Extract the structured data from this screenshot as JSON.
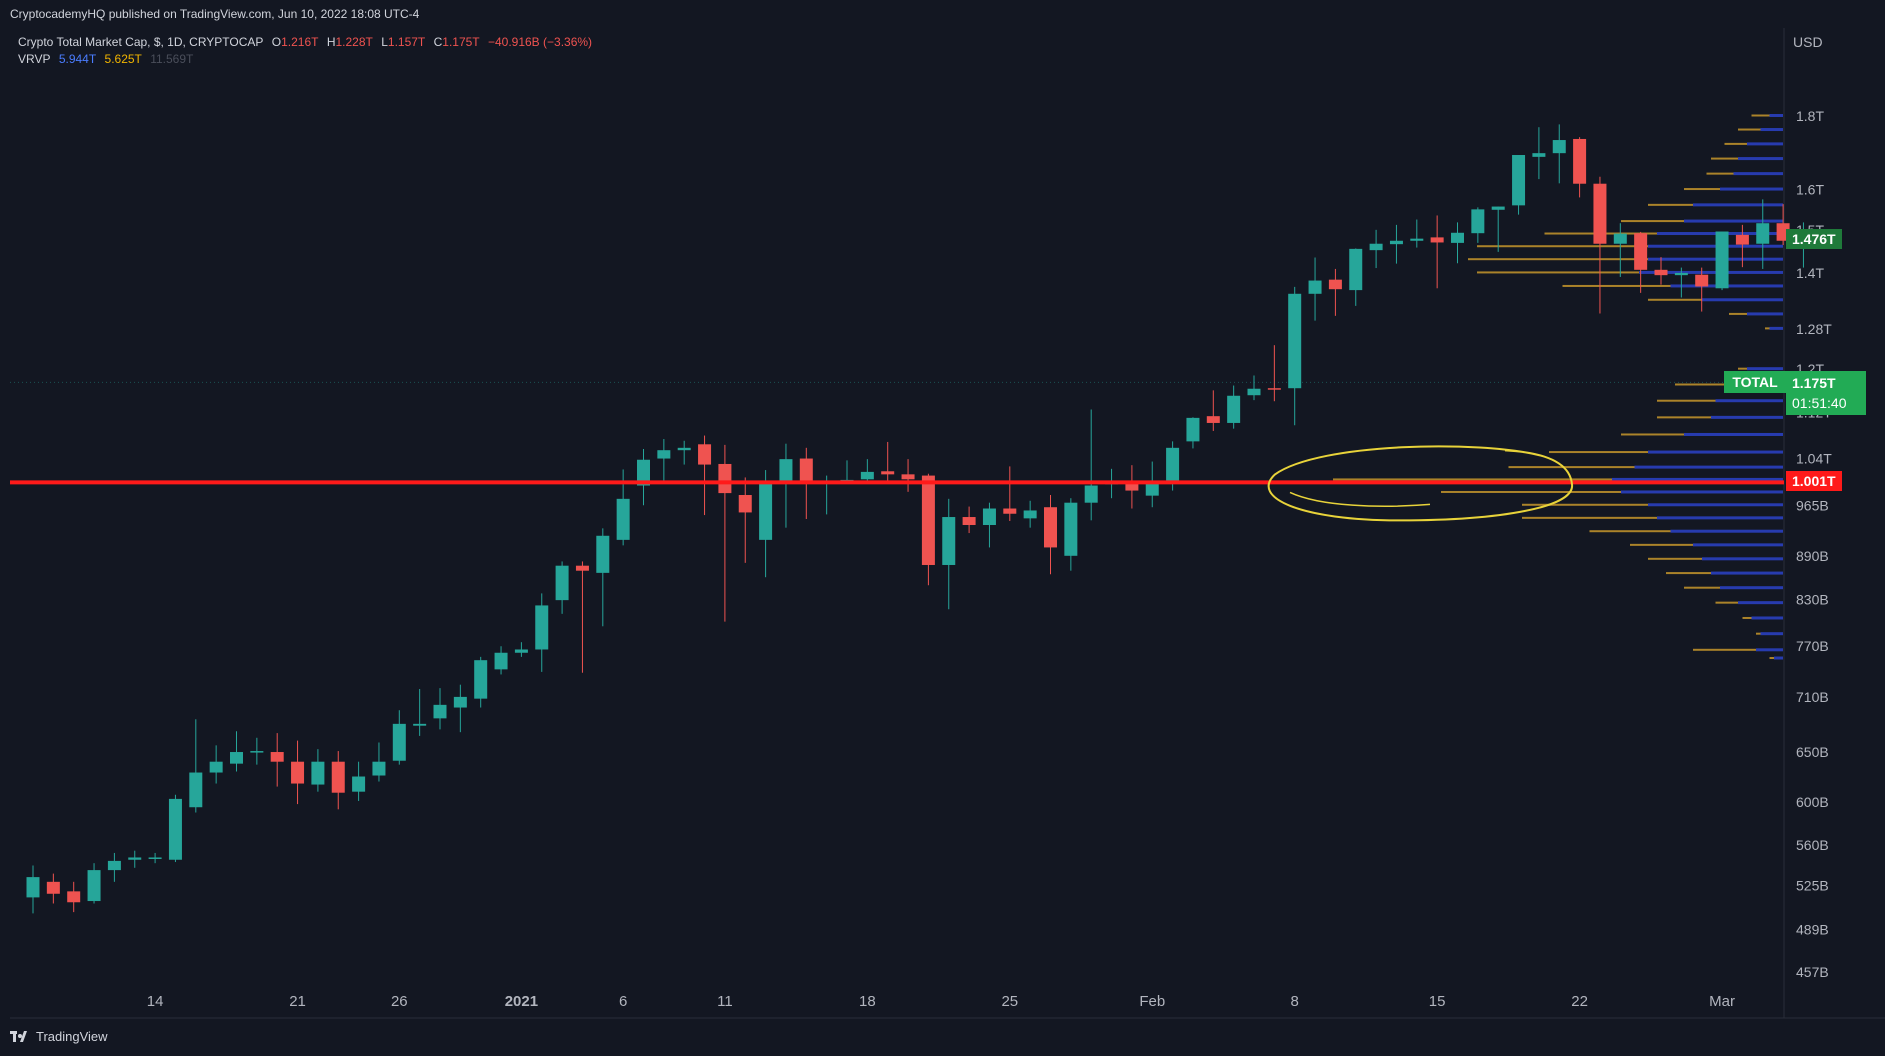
{
  "header": {
    "publisher": "CryptocademyHQ published on TradingView.com, Jun 10, 2022 18:08 UTC-4"
  },
  "legend": {
    "symbol": "Crypto Total Market Cap, $, 1D, CRYPTOCAP",
    "open_label": "O",
    "open": "1.216T",
    "high_label": "H",
    "high": "1.228T",
    "low_label": "L",
    "low": "1.157T",
    "close_label": "C",
    "close": "1.175T",
    "change": "−40.916B (−3.36%)",
    "indicator": "VRVP",
    "vrvp_up": "5.944T",
    "vrvp_down": "5.625T",
    "vrvp_total": "11.569T"
  },
  "price_tags": {
    "top": "1.476T",
    "symbol": "TOTAL",
    "last": "1.175T",
    "countdown": "01:51:40",
    "level": "1.001T"
  },
  "footer": {
    "brand": "TradingView"
  },
  "colors": {
    "background": "#131722",
    "up": "#26a69a",
    "down": "#ef5350",
    "vp_up": "#2a3fbf",
    "vp_down": "#c7962b",
    "level_line": "#ff1a1a",
    "annotation": "#e8d33a",
    "label_green": "#22ab55"
  },
  "chart_data": {
    "type": "candlestick",
    "currency": "USD",
    "y_scale": "log",
    "ylim": [
      435,
      2000
    ],
    "y_ticks": [
      {
        "value": 1800,
        "label": "1.8T"
      },
      {
        "value": 1600,
        "label": "1.6T"
      },
      {
        "value": 1500,
        "label": "1.5T"
      },
      {
        "value": 1400,
        "label": "1.4T"
      },
      {
        "value": 1280,
        "label": "1.28T"
      },
      {
        "value": 1200,
        "label": "1.2T"
      },
      {
        "value": 1120,
        "label": "1.12T"
      },
      {
        "value": 1040,
        "label": "1.04T"
      },
      {
        "value": 965,
        "label": "965B"
      },
      {
        "value": 890,
        "label": "890B"
      },
      {
        "value": 830,
        "label": "830B"
      },
      {
        "value": 770,
        "label": "770B"
      },
      {
        "value": 710,
        "label": "710B"
      },
      {
        "value": 650,
        "label": "650B"
      },
      {
        "value": 600,
        "label": "600B"
      },
      {
        "value": 560,
        "label": "560B"
      },
      {
        "value": 525,
        "label": "525B"
      },
      {
        "value": 489,
        "label": "489B"
      },
      {
        "value": 457,
        "label": "457B"
      }
    ],
    "x_ticks": [
      {
        "index": 6,
        "label": "14"
      },
      {
        "index": 13,
        "label": "21"
      },
      {
        "index": 18,
        "label": "26"
      },
      {
        "index": 24,
        "label": "2021",
        "bold": true
      },
      {
        "index": 29,
        "label": "6"
      },
      {
        "index": 34,
        "label": "11"
      },
      {
        "index": 41,
        "label": "18"
      },
      {
        "index": 48,
        "label": "25"
      },
      {
        "index": 55,
        "label": "Feb"
      },
      {
        "index": 62,
        "label": "8"
      },
      {
        "index": 69,
        "label": "15"
      },
      {
        "index": 76,
        "label": "22"
      },
      {
        "index": 83,
        "label": "Mar"
      }
    ],
    "levels": [
      {
        "value": 1001,
        "label": "1.001T"
      }
    ],
    "candles": [
      {
        "o": 515,
        "h": 542,
        "l": 502,
        "c": 532
      },
      {
        "o": 528,
        "h": 535,
        "l": 510,
        "c": 518
      },
      {
        "o": 520,
        "h": 528,
        "l": 503,
        "c": 511
      },
      {
        "o": 512,
        "h": 544,
        "l": 510,
        "c": 538
      },
      {
        "o": 538,
        "h": 553,
        "l": 528,
        "c": 546
      },
      {
        "o": 547,
        "h": 555,
        "l": 540,
        "c": 549
      },
      {
        "o": 549,
        "h": 553,
        "l": 544,
        "c": 549
      },
      {
        "o": 547,
        "h": 607,
        "l": 545,
        "c": 603
      },
      {
        "o": 595,
        "h": 685,
        "l": 590,
        "c": 629
      },
      {
        "o": 629,
        "h": 657,
        "l": 618,
        "c": 640
      },
      {
        "o": 638,
        "h": 672,
        "l": 630,
        "c": 650
      },
      {
        "o": 650,
        "h": 665,
        "l": 637,
        "c": 651
      },
      {
        "o": 650,
        "h": 670,
        "l": 615,
        "c": 640
      },
      {
        "o": 640,
        "h": 662,
        "l": 598,
        "c": 618
      },
      {
        "o": 617,
        "h": 653,
        "l": 610,
        "c": 640
      },
      {
        "o": 640,
        "h": 651,
        "l": 593,
        "c": 609
      },
      {
        "o": 610,
        "h": 640,
        "l": 601,
        "c": 625
      },
      {
        "o": 626,
        "h": 660,
        "l": 620,
        "c": 640
      },
      {
        "o": 641,
        "h": 695,
        "l": 637,
        "c": 680
      },
      {
        "o": 678,
        "h": 719,
        "l": 667,
        "c": 680
      },
      {
        "o": 686,
        "h": 720,
        "l": 674,
        "c": 701
      },
      {
        "o": 698,
        "h": 724,
        "l": 671,
        "c": 710
      },
      {
        "o": 708,
        "h": 757,
        "l": 698,
        "c": 753
      },
      {
        "o": 742,
        "h": 770,
        "l": 736,
        "c": 762
      },
      {
        "o": 762,
        "h": 775,
        "l": 757,
        "c": 766
      },
      {
        "o": 766,
        "h": 838,
        "l": 739,
        "c": 822
      },
      {
        "o": 829,
        "h": 882,
        "l": 811,
        "c": 876
      },
      {
        "o": 876,
        "h": 882,
        "l": 738,
        "c": 869
      },
      {
        "o": 866,
        "h": 930,
        "l": 795,
        "c": 919
      },
      {
        "o": 913,
        "h": 1022,
        "l": 905,
        "c": 975
      },
      {
        "o": 996,
        "h": 1056,
        "l": 965,
        "c": 1038
      },
      {
        "o": 1040,
        "h": 1073,
        "l": 1002,
        "c": 1054
      },
      {
        "o": 1054,
        "h": 1070,
        "l": 1030,
        "c": 1058
      },
      {
        "o": 1064,
        "h": 1079,
        "l": 950,
        "c": 1030
      },
      {
        "o": 1031,
        "h": 1063,
        "l": 801,
        "c": 984
      },
      {
        "o": 981,
        "h": 1009,
        "l": 880,
        "c": 954
      },
      {
        "o": 913,
        "h": 1021,
        "l": 860,
        "c": 1002
      },
      {
        "o": 1001,
        "h": 1065,
        "l": 931,
        "c": 1039
      },
      {
        "o": 1040,
        "h": 1058,
        "l": 944,
        "c": 1002
      },
      {
        "o": 1000,
        "h": 1012,
        "l": 951,
        "c": 1001
      },
      {
        "o": 1001,
        "h": 1037,
        "l": 999,
        "c": 1005
      },
      {
        "o": 1006,
        "h": 1039,
        "l": 999,
        "c": 1018
      },
      {
        "o": 1019,
        "h": 1068,
        "l": 999,
        "c": 1014
      },
      {
        "o": 1014,
        "h": 1039,
        "l": 986,
        "c": 1006
      },
      {
        "o": 1012,
        "h": 1015,
        "l": 849,
        "c": 877
      },
      {
        "o": 877,
        "h": 975,
        "l": 817,
        "c": 947
      },
      {
        "o": 947,
        "h": 963,
        "l": 923,
        "c": 935
      },
      {
        "o": 935,
        "h": 969,
        "l": 902,
        "c": 960
      },
      {
        "o": 960,
        "h": 1027,
        "l": 941,
        "c": 952
      },
      {
        "o": 945,
        "h": 972,
        "l": 931,
        "c": 957
      },
      {
        "o": 962,
        "h": 981,
        "l": 864,
        "c": 902
      },
      {
        "o": 890,
        "h": 976,
        "l": 869,
        "c": 969
      },
      {
        "o": 969,
        "h": 1125,
        "l": 942,
        "c": 996
      },
      {
        "o": 998,
        "h": 1023,
        "l": 976,
        "c": 1003
      },
      {
        "o": 1004,
        "h": 1029,
        "l": 960,
        "c": 988
      },
      {
        "o": 980,
        "h": 1035,
        "l": 962,
        "c": 1001
      },
      {
        "o": 1001,
        "h": 1069,
        "l": 988,
        "c": 1058
      },
      {
        "o": 1069,
        "h": 1111,
        "l": 1057,
        "c": 1110
      },
      {
        "o": 1113,
        "h": 1160,
        "l": 1087,
        "c": 1101
      },
      {
        "o": 1101,
        "h": 1169,
        "l": 1091,
        "c": 1150
      },
      {
        "o": 1151,
        "h": 1188,
        "l": 1142,
        "c": 1163
      },
      {
        "o": 1164,
        "h": 1247,
        "l": 1140,
        "c": 1163
      },
      {
        "o": 1164,
        "h": 1369,
        "l": 1097,
        "c": 1354
      },
      {
        "o": 1354,
        "h": 1435,
        "l": 1297,
        "c": 1383
      },
      {
        "o": 1385,
        "h": 1409,
        "l": 1307,
        "c": 1364
      },
      {
        "o": 1362,
        "h": 1456,
        "l": 1328,
        "c": 1455
      },
      {
        "o": 1452,
        "h": 1500,
        "l": 1411,
        "c": 1467
      },
      {
        "o": 1466,
        "h": 1512,
        "l": 1421,
        "c": 1474
      },
      {
        "o": 1474,
        "h": 1525,
        "l": 1458,
        "c": 1479
      },
      {
        "o": 1482,
        "h": 1535,
        "l": 1366,
        "c": 1470
      },
      {
        "o": 1469,
        "h": 1518,
        "l": 1422,
        "c": 1493
      },
      {
        "o": 1492,
        "h": 1555,
        "l": 1469,
        "c": 1550
      },
      {
        "o": 1549,
        "h": 1557,
        "l": 1448,
        "c": 1557
      },
      {
        "o": 1560,
        "h": 1690,
        "l": 1537,
        "c": 1691
      },
      {
        "o": 1686,
        "h": 1768,
        "l": 1627,
        "c": 1696
      },
      {
        "o": 1696,
        "h": 1776,
        "l": 1616,
        "c": 1732
      },
      {
        "o": 1735,
        "h": 1740,
        "l": 1580,
        "c": 1615
      },
      {
        "o": 1615,
        "h": 1633,
        "l": 1312,
        "c": 1467
      },
      {
        "o": 1467,
        "h": 1516,
        "l": 1391,
        "c": 1491
      },
      {
        "o": 1492,
        "h": 1495,
        "l": 1356,
        "c": 1407
      },
      {
        "o": 1407,
        "h": 1436,
        "l": 1374,
        "c": 1395
      },
      {
        "o": 1395,
        "h": 1412,
        "l": 1346,
        "c": 1400
      },
      {
        "o": 1396,
        "h": 1412,
        "l": 1316,
        "c": 1370
      },
      {
        "o": 1366,
        "h": 1496,
        "l": 1362,
        "c": 1496
      },
      {
        "o": 1488,
        "h": 1512,
        "l": 1413,
        "c": 1465
      },
      {
        "o": 1467,
        "h": 1575,
        "l": 1409,
        "c": 1516
      },
      {
        "o": 1516,
        "h": 1563,
        "l": 1464,
        "c": 1474
      },
      {
        "o": 1475,
        "h": 1518,
        "l": 1412,
        "c": 1476
      }
    ],
    "volume_profile": {
      "note_position": "right",
      "rows": [
        {
          "p": 1800,
          "up": 0.03,
          "dn": 0.04
        },
        {
          "p": 1760,
          "up": 0.05,
          "dn": 0.05
        },
        {
          "p": 1720,
          "up": 0.08,
          "dn": 0.05
        },
        {
          "p": 1680,
          "up": 0.1,
          "dn": 0.06
        },
        {
          "p": 1640,
          "up": 0.11,
          "dn": 0.06
        },
        {
          "p": 1600,
          "up": 0.14,
          "dn": 0.08
        },
        {
          "p": 1560,
          "up": 0.2,
          "dn": 0.1
        },
        {
          "p": 1520,
          "up": 0.22,
          "dn": 0.14
        },
        {
          "p": 1490,
          "up": 0.28,
          "dn": 0.25
        },
        {
          "p": 1460,
          "up": 0.3,
          "dn": 0.38
        },
        {
          "p": 1430,
          "up": 0.3,
          "dn": 0.4
        },
        {
          "p": 1400,
          "up": 0.32,
          "dn": 0.36
        },
        {
          "p": 1370,
          "up": 0.25,
          "dn": 0.24
        },
        {
          "p": 1340,
          "up": 0.18,
          "dn": 0.12
        },
        {
          "p": 1310,
          "up": 0.08,
          "dn": 0.04
        },
        {
          "p": 1280,
          "up": 0.03,
          "dn": 0.01
        },
        {
          "p": 1200,
          "up": 0.08,
          "dn": 0.02
        },
        {
          "p": 1170,
          "up": 0.12,
          "dn": 0.12
        },
        {
          "p": 1140,
          "up": 0.15,
          "dn": 0.13
        },
        {
          "p": 1110,
          "up": 0.16,
          "dn": 0.12
        },
        {
          "p": 1080,
          "up": 0.22,
          "dn": 0.14
        },
        {
          "p": 1050,
          "up": 0.3,
          "dn": 0.22
        },
        {
          "p": 1025,
          "up": 0.33,
          "dn": 0.28
        },
        {
          "p": 1005,
          "up": 0.38,
          "dn": 0.62
        },
        {
          "p": 985,
          "up": 0.36,
          "dn": 0.4
        },
        {
          "p": 965,
          "up": 0.3,
          "dn": 0.28
        },
        {
          "p": 945,
          "up": 0.28,
          "dn": 0.3
        },
        {
          "p": 925,
          "up": 0.25,
          "dn": 0.18
        },
        {
          "p": 905,
          "up": 0.2,
          "dn": 0.14
        },
        {
          "p": 885,
          "up": 0.18,
          "dn": 0.12
        },
        {
          "p": 865,
          "up": 0.16,
          "dn": 0.1
        },
        {
          "p": 845,
          "up": 0.14,
          "dn": 0.08
        },
        {
          "p": 825,
          "up": 0.1,
          "dn": 0.05
        },
        {
          "p": 805,
          "up": 0.07,
          "dn": 0.02
        },
        {
          "p": 785,
          "up": 0.05,
          "dn": 0.01
        },
        {
          "p": 765,
          "up": 0.06,
          "dn": 0.14
        },
        {
          "p": 755,
          "up": 0.02,
          "dn": 0.01
        }
      ]
    }
  }
}
